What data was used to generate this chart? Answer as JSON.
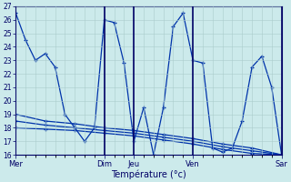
{
  "xlabel": "Température (°c)",
  "background_color": "#cceaeb",
  "grid_color": "#aacccc",
  "line_color": "#0033aa",
  "ylim": [
    16,
    27
  ],
  "yticks": [
    16,
    17,
    18,
    19,
    20,
    21,
    22,
    23,
    24,
    25,
    26,
    27
  ],
  "day_labels": [
    "Mer",
    "Dim",
    "Jeu",
    "Ven",
    "Sar"
  ],
  "day_positions": [
    0,
    9,
    12,
    18,
    27
  ],
  "xlim": [
    0,
    27
  ],
  "series1_x": [
    0,
    1,
    2,
    3,
    4,
    5,
    6,
    7,
    8,
    9,
    10,
    11,
    12,
    13,
    14,
    15,
    16,
    17,
    18,
    19,
    20,
    21,
    22,
    23,
    24,
    25,
    26,
    27
  ],
  "series1_y": [
    26.5,
    24.5,
    23.0,
    23.5,
    22.5,
    19.0,
    18.0,
    17.0,
    18.0,
    26.0,
    25.8,
    22.8,
    17.0,
    19.5,
    16.0,
    19.5,
    25.5,
    26.5,
    23.0,
    22.8,
    16.5,
    16.2,
    16.5,
    18.5,
    22.5,
    23.3,
    21.0,
    16.0
  ],
  "series2_x": [
    0,
    3,
    6,
    9,
    12,
    15,
    18,
    21,
    24,
    27
  ],
  "series2_y": [
    19.0,
    18.5,
    18.3,
    18.0,
    17.8,
    17.5,
    17.2,
    16.8,
    16.5,
    16.0
  ],
  "series3_x": [
    0,
    3,
    6,
    9,
    12,
    15,
    18,
    21,
    24,
    27
  ],
  "series3_y": [
    18.5,
    18.2,
    18.0,
    17.8,
    17.6,
    17.3,
    17.0,
    16.6,
    16.3,
    16.0
  ],
  "series4_x": [
    0,
    3,
    6,
    9,
    12,
    15,
    18,
    21,
    24,
    27
  ],
  "series4_y": [
    18.0,
    17.9,
    17.8,
    17.6,
    17.4,
    17.1,
    16.8,
    16.4,
    16.1,
    16.0
  ]
}
